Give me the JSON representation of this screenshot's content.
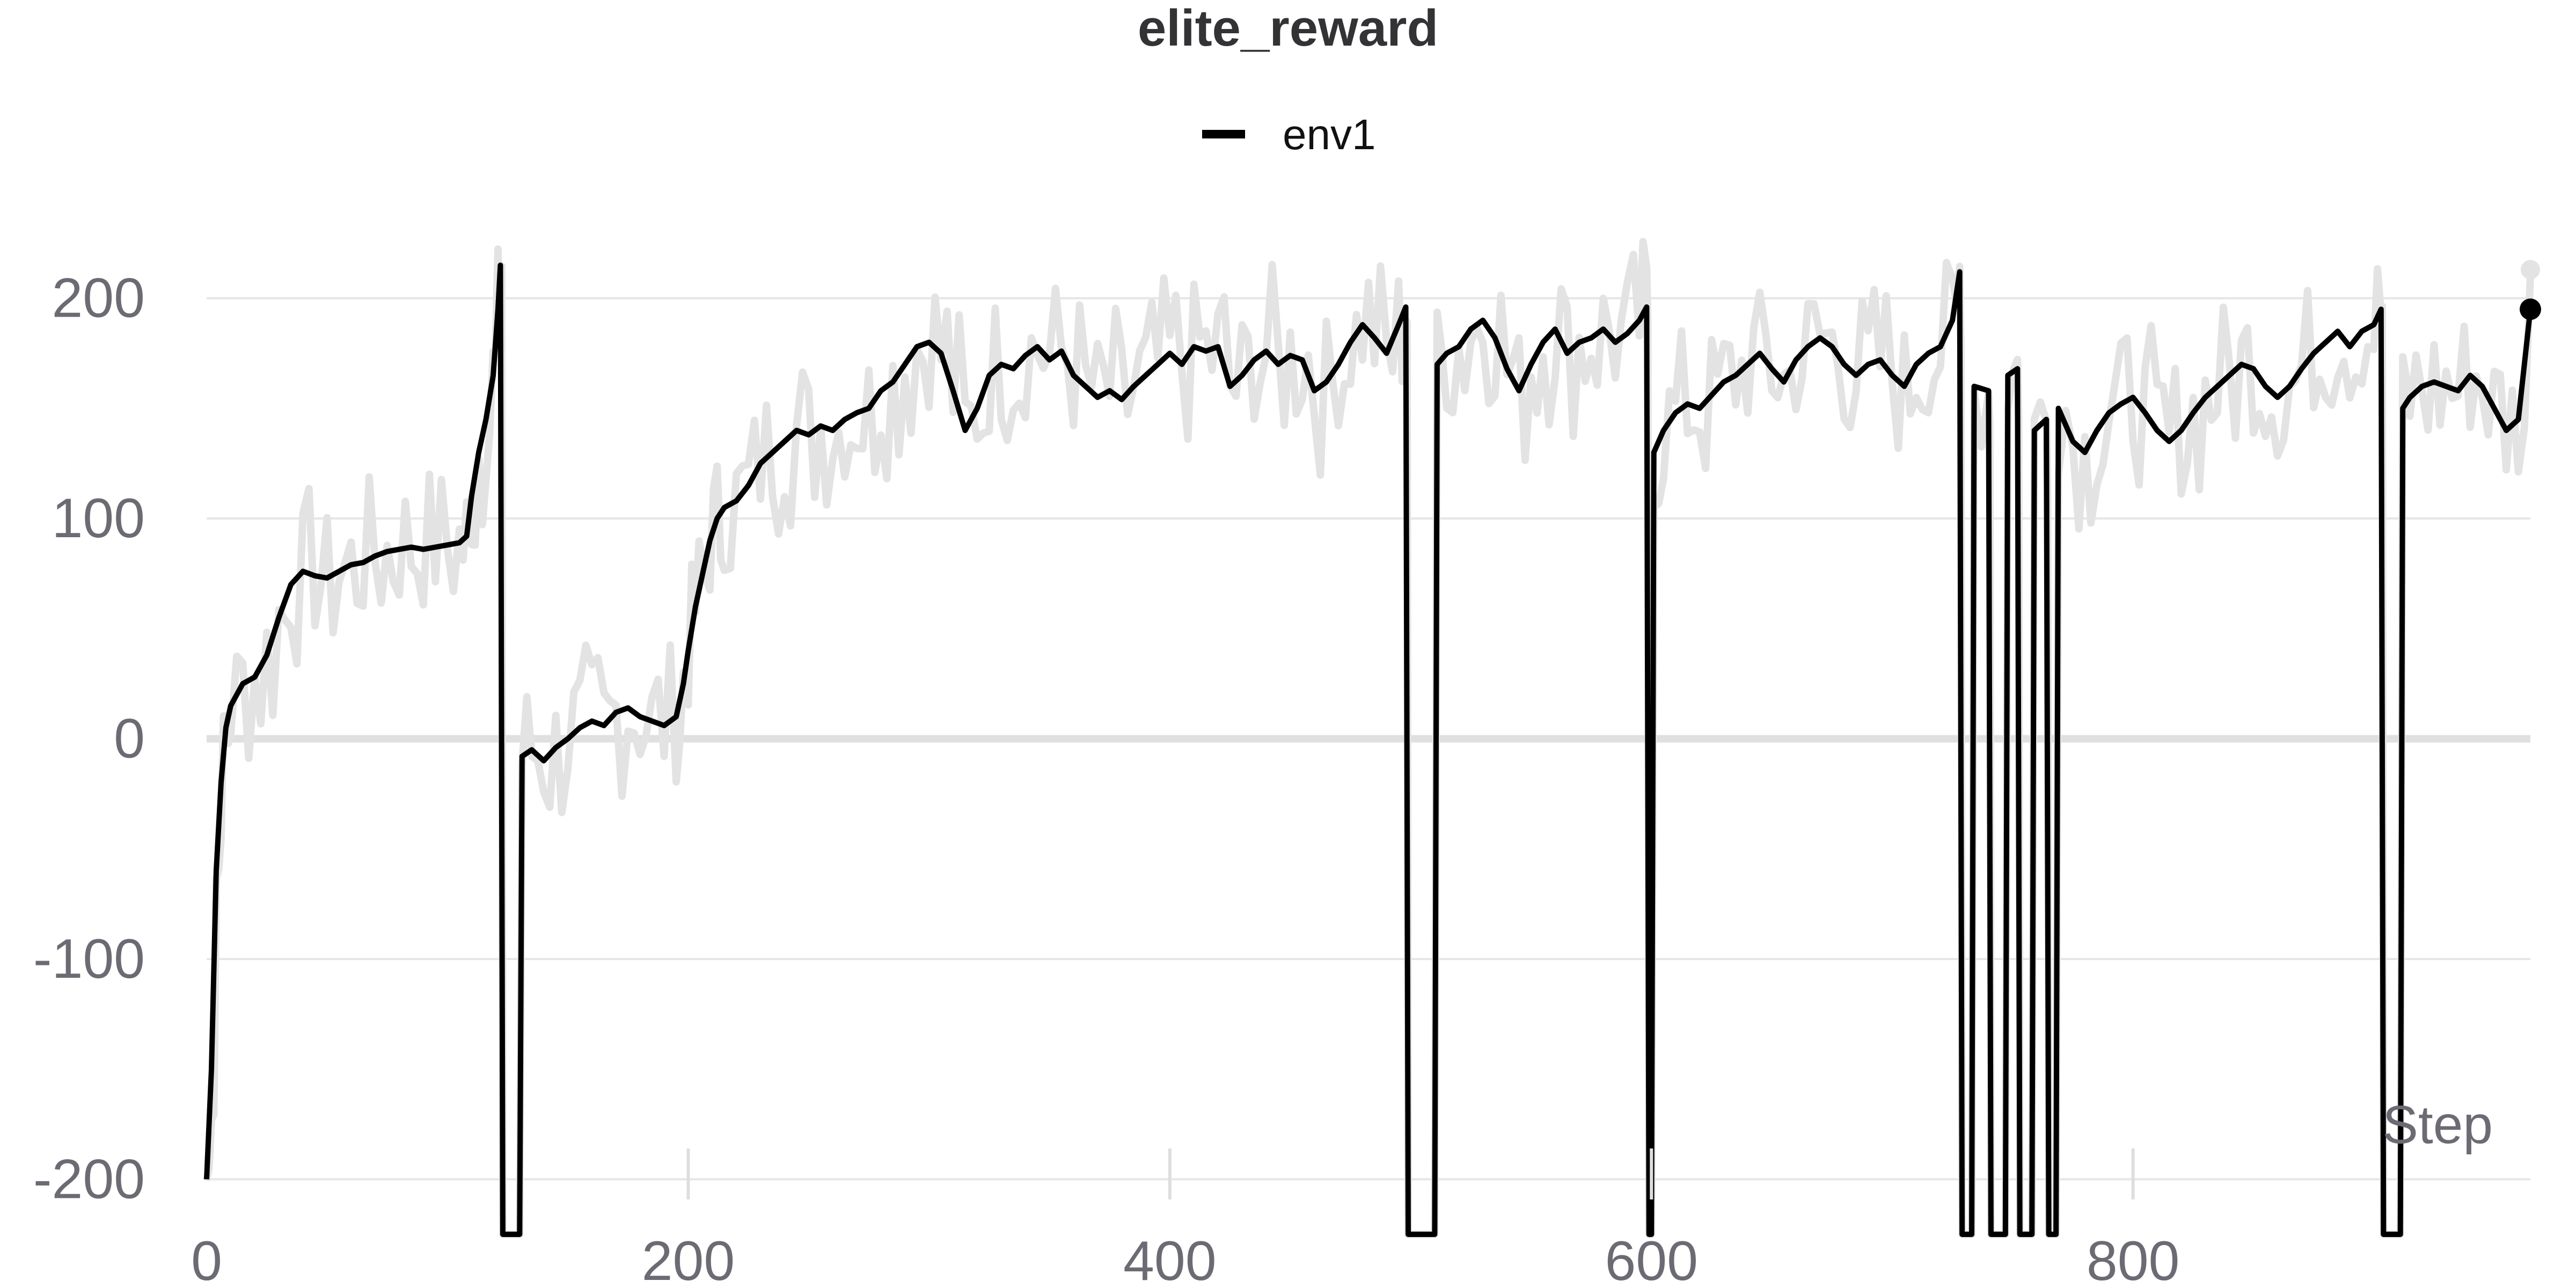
{
  "chart_data": {
    "type": "line",
    "title": "elite_reward",
    "xlabel": "Step",
    "ylabel": "",
    "xlim": [
      0,
      965
    ],
    "ylim": [
      -225,
      255
    ],
    "x_ticks": [
      0,
      200,
      400,
      600,
      800
    ],
    "y_ticks": [
      200,
      100,
      0,
      -100,
      -200
    ],
    "grid": "horizontal",
    "legend_position": "top-center",
    "series": [
      {
        "name": "env1",
        "color": "#000000",
        "raw_color": "#e3e3e3",
        "smoothed": [
          [
            0,
            -200
          ],
          [
            2,
            -150
          ],
          [
            4,
            -60
          ],
          [
            6,
            -20
          ],
          [
            8,
            5
          ],
          [
            10,
            15
          ],
          [
            15,
            25
          ],
          [
            20,
            28
          ],
          [
            25,
            38
          ],
          [
            30,
            55
          ],
          [
            35,
            70
          ],
          [
            40,
            76
          ],
          [
            45,
            74
          ],
          [
            50,
            73
          ],
          [
            55,
            76
          ],
          [
            60,
            79
          ],
          [
            65,
            80
          ],
          [
            70,
            83
          ],
          [
            75,
            85
          ],
          [
            80,
            86
          ],
          [
            85,
            87
          ],
          [
            90,
            86
          ],
          [
            95,
            87
          ],
          [
            100,
            88
          ],
          [
            105,
            89
          ],
          [
            108,
            92
          ],
          [
            110,
            110
          ],
          [
            113,
            130
          ],
          [
            116,
            145
          ],
          [
            119,
            165
          ],
          [
            121,
            195
          ],
          [
            122,
            215
          ],
          [
            123,
            -225
          ],
          [
            130,
            -225
          ],
          [
            131,
            -8
          ],
          [
            135,
            -5
          ],
          [
            140,
            -10
          ],
          [
            145,
            -4
          ],
          [
            150,
            0
          ],
          [
            155,
            5
          ],
          [
            160,
            8
          ],
          [
            165,
            6
          ],
          [
            170,
            12
          ],
          [
            175,
            14
          ],
          [
            180,
            10
          ],
          [
            185,
            8
          ],
          [
            190,
            6
          ],
          [
            195,
            10
          ],
          [
            198,
            25
          ],
          [
            200,
            40
          ],
          [
            203,
            60
          ],
          [
            206,
            75
          ],
          [
            209,
            90
          ],
          [
            212,
            100
          ],
          [
            215,
            105
          ],
          [
            220,
            108
          ],
          [
            225,
            115
          ],
          [
            230,
            125
          ],
          [
            235,
            130
          ],
          [
            240,
            135
          ],
          [
            245,
            140
          ],
          [
            250,
            138
          ],
          [
            255,
            142
          ],
          [
            260,
            140
          ],
          [
            265,
            145
          ],
          [
            270,
            148
          ],
          [
            275,
            150
          ],
          [
            280,
            158
          ],
          [
            285,
            162
          ],
          [
            290,
            170
          ],
          [
            295,
            178
          ],
          [
            300,
            180
          ],
          [
            305,
            175
          ],
          [
            310,
            158
          ],
          [
            315,
            140
          ],
          [
            320,
            150
          ],
          [
            325,
            165
          ],
          [
            330,
            170
          ],
          [
            335,
            168
          ],
          [
            340,
            174
          ],
          [
            345,
            178
          ],
          [
            350,
            172
          ],
          [
            355,
            176
          ],
          [
            360,
            165
          ],
          [
            365,
            160
          ],
          [
            370,
            155
          ],
          [
            375,
            158
          ],
          [
            380,
            154
          ],
          [
            385,
            160
          ],
          [
            390,
            165
          ],
          [
            395,
            170
          ],
          [
            400,
            175
          ],
          [
            405,
            170
          ],
          [
            410,
            178
          ],
          [
            415,
            176
          ],
          [
            420,
            178
          ],
          [
            425,
            160
          ],
          [
            430,
            165
          ],
          [
            435,
            172
          ],
          [
            440,
            176
          ],
          [
            445,
            170
          ],
          [
            450,
            174
          ],
          [
            455,
            172
          ],
          [
            460,
            158
          ],
          [
            465,
            162
          ],
          [
            470,
            170
          ],
          [
            475,
            180
          ],
          [
            480,
            188
          ],
          [
            485,
            182
          ],
          [
            490,
            175
          ],
          [
            495,
            188
          ],
          [
            498,
            196
          ],
          [
            499,
            -225
          ],
          [
            510,
            -225
          ],
          [
            511,
            170
          ],
          [
            515,
            175
          ],
          [
            520,
            178
          ],
          [
            525,
            186
          ],
          [
            530,
            190
          ],
          [
            535,
            182
          ],
          [
            540,
            168
          ],
          [
            545,
            158
          ],
          [
            550,
            170
          ],
          [
            555,
            180
          ],
          [
            560,
            186
          ],
          [
            565,
            175
          ],
          [
            570,
            180
          ],
          [
            575,
            182
          ],
          [
            580,
            186
          ],
          [
            585,
            180
          ],
          [
            590,
            184
          ],
          [
            595,
            190
          ],
          [
            598,
            196
          ],
          [
            599,
            -225
          ],
          [
            600,
            -225
          ],
          [
            601,
            130
          ],
          [
            605,
            140
          ],
          [
            610,
            148
          ],
          [
            615,
            152
          ],
          [
            620,
            150
          ],
          [
            625,
            156
          ],
          [
            630,
            162
          ],
          [
            635,
            165
          ],
          [
            640,
            170
          ],
          [
            645,
            175
          ],
          [
            650,
            168
          ],
          [
            655,
            162
          ],
          [
            660,
            172
          ],
          [
            665,
            178
          ],
          [
            670,
            182
          ],
          [
            675,
            178
          ],
          [
            680,
            170
          ],
          [
            685,
            165
          ],
          [
            690,
            170
          ],
          [
            695,
            172
          ],
          [
            700,
            165
          ],
          [
            705,
            160
          ],
          [
            710,
            170
          ],
          [
            715,
            175
          ],
          [
            720,
            178
          ],
          [
            725,
            190
          ],
          [
            728,
            212
          ],
          [
            729,
            -225
          ],
          [
            733,
            -225
          ],
          [
            734,
            160
          ],
          [
            740,
            158
          ],
          [
            741,
            -225
          ],
          [
            747,
            -225
          ],
          [
            748,
            165
          ],
          [
            752,
            168
          ],
          [
            753,
            -225
          ],
          [
            758,
            -225
          ],
          [
            759,
            140
          ],
          [
            764,
            145
          ],
          [
            765,
            -225
          ],
          [
            768,
            -225
          ],
          [
            769,
            150
          ],
          [
            775,
            135
          ],
          [
            780,
            130
          ],
          [
            785,
            140
          ],
          [
            790,
            148
          ],
          [
            795,
            152
          ],
          [
            800,
            155
          ],
          [
            805,
            148
          ],
          [
            810,
            140
          ],
          [
            815,
            135
          ],
          [
            820,
            140
          ],
          [
            825,
            148
          ],
          [
            830,
            155
          ],
          [
            835,
            160
          ],
          [
            840,
            165
          ],
          [
            845,
            170
          ],
          [
            850,
            168
          ],
          [
            855,
            160
          ],
          [
            860,
            155
          ],
          [
            865,
            160
          ],
          [
            870,
            168
          ],
          [
            875,
            175
          ],
          [
            880,
            180
          ],
          [
            885,
            185
          ],
          [
            890,
            178
          ],
          [
            895,
            185
          ],
          [
            900,
            188
          ],
          [
            903,
            195
          ],
          [
            904,
            -225
          ],
          [
            911,
            -225
          ],
          [
            912,
            150
          ],
          [
            915,
            155
          ],
          [
            920,
            160
          ],
          [
            925,
            162
          ],
          [
            930,
            160
          ],
          [
            935,
            158
          ],
          [
            940,
            165
          ],
          [
            945,
            160
          ],
          [
            950,
            150
          ],
          [
            955,
            140
          ],
          [
            960,
            145
          ],
          [
            965,
            195
          ]
        ]
      }
    ]
  }
}
